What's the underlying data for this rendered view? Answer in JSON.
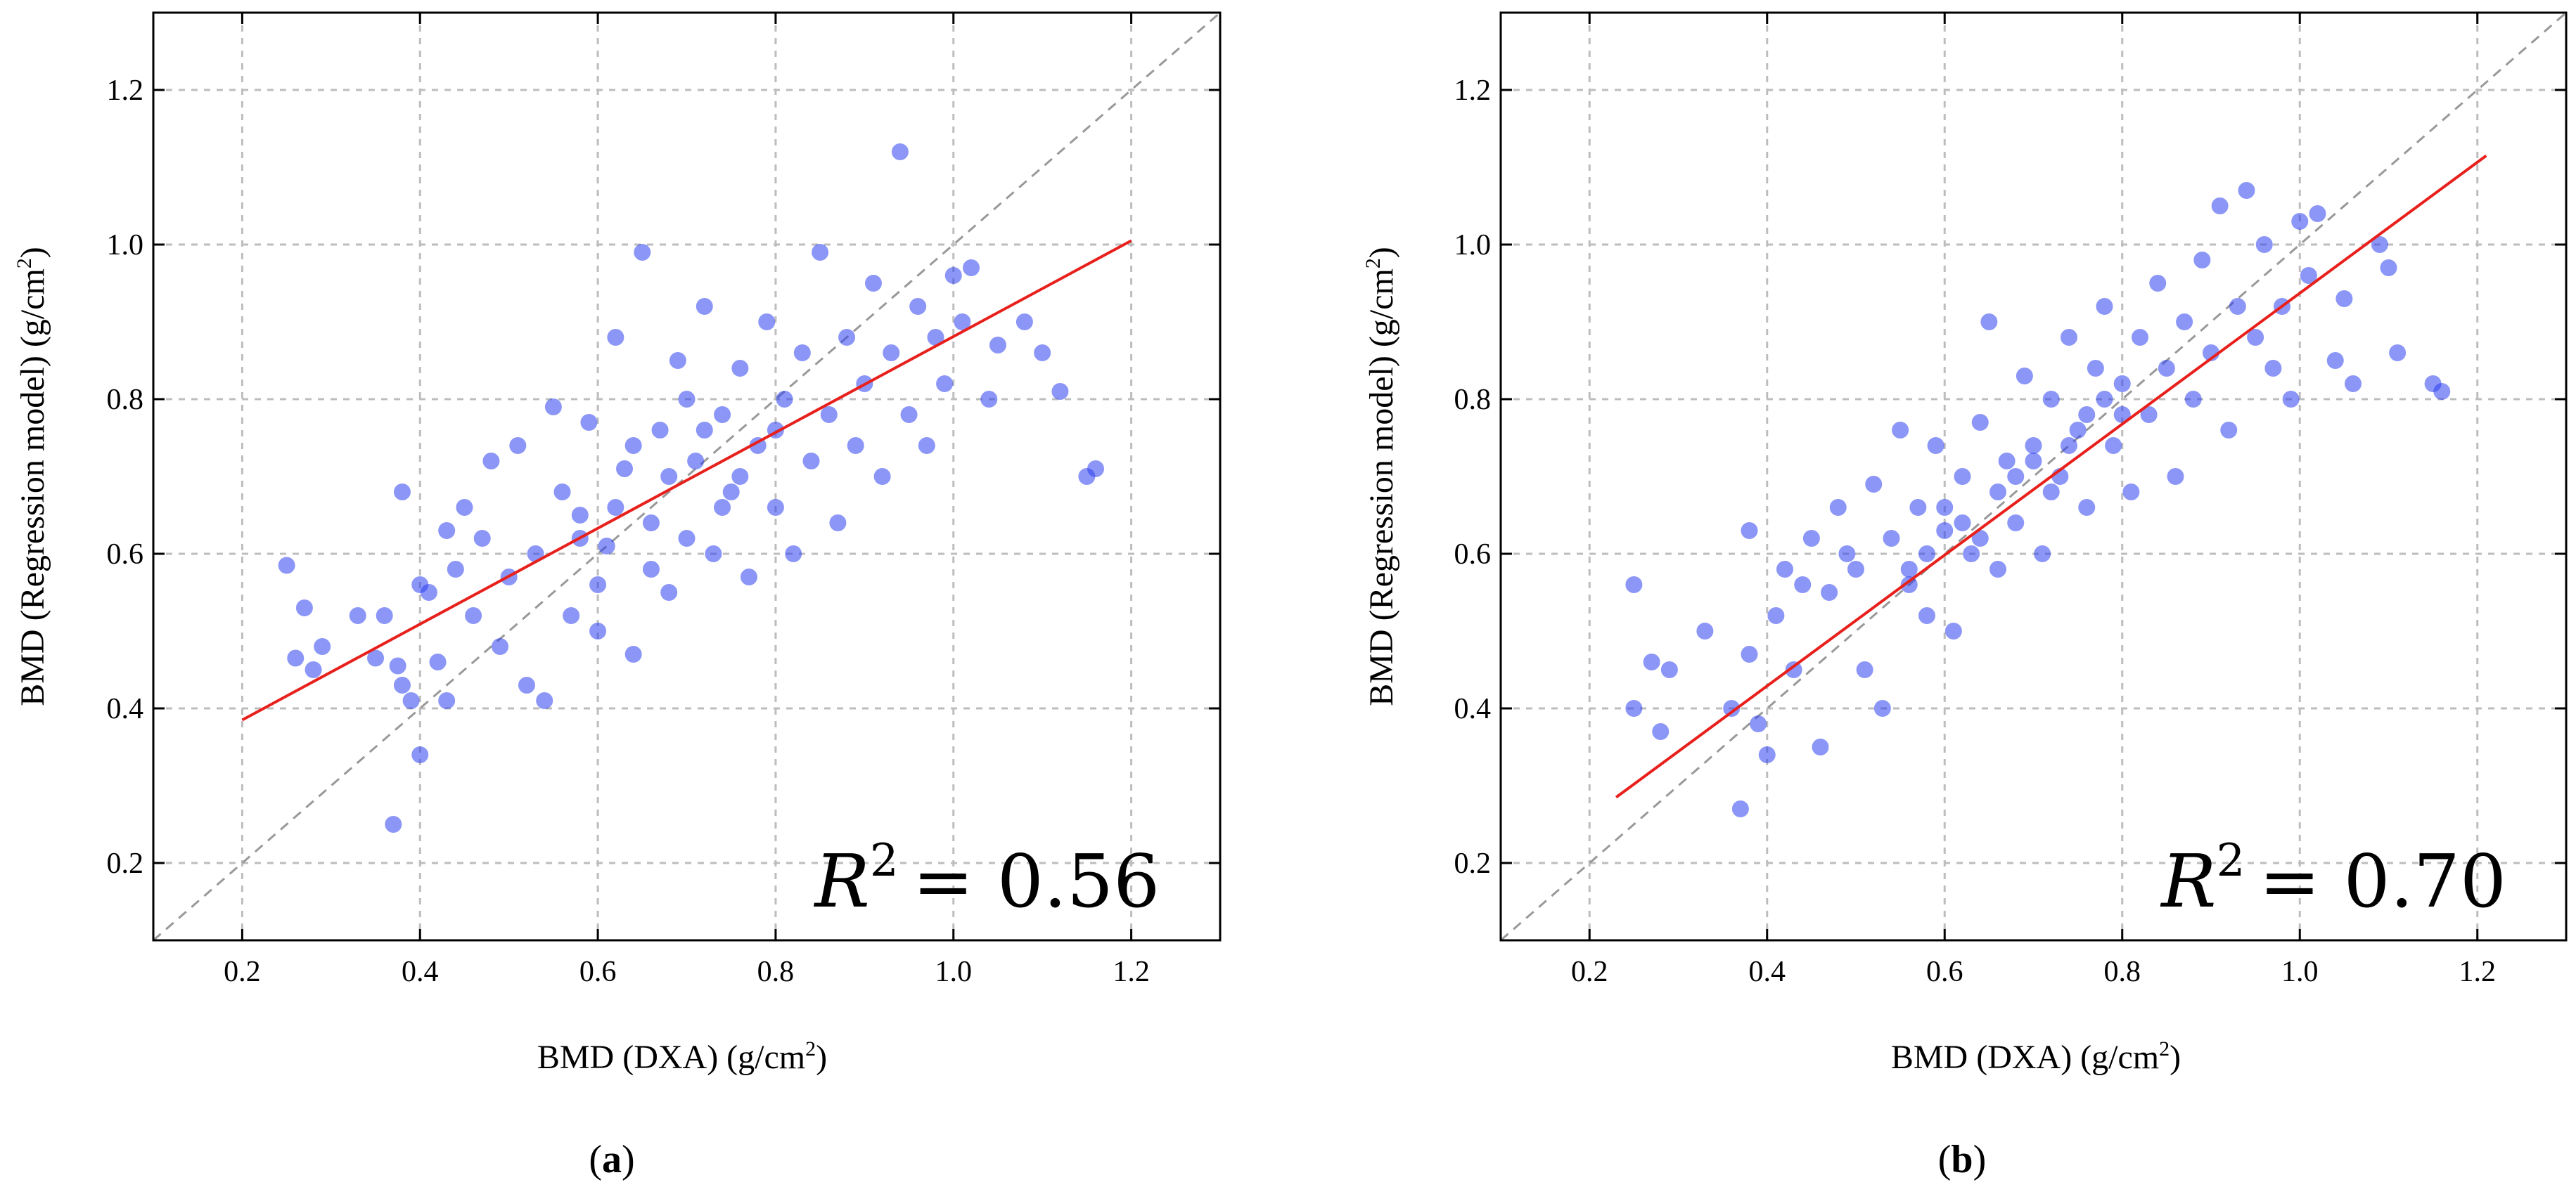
{
  "chart_data": [
    {
      "type": "scatter",
      "panel_label": "a",
      "xlabel": "BMD (DXA) (g/cm",
      "ylabel": "BMD (Regression model) (g/cm",
      "unit_superscript": "2",
      "xlim": [
        0.1,
        1.3
      ],
      "ylim": [
        0.1,
        1.3
      ],
      "xticks": [
        "0.2",
        "0.4",
        "0.6",
        "0.8",
        "1.0",
        "1.2"
      ],
      "yticks": [
        "0.2",
        "0.4",
        "0.6",
        "0.8",
        "1.0",
        "1.2"
      ],
      "grid": true,
      "r2_label": "R",
      "r2_superscript": "2",
      "r2_value": "= 0.56",
      "identity_line": {
        "x": [
          0.1,
          1.3
        ],
        "y": [
          0.1,
          1.3
        ],
        "style": "dashed",
        "color": "#999999"
      },
      "fit_line": {
        "x": [
          0.2,
          1.2
        ],
        "y": [
          0.385,
          1.005
        ],
        "color": "#e8201c"
      },
      "point_color": "#2b3ff0",
      "points": [
        [
          0.25,
          0.585
        ],
        [
          0.26,
          0.465
        ],
        [
          0.27,
          0.53
        ],
        [
          0.28,
          0.45
        ],
        [
          0.29,
          0.48
        ],
        [
          0.33,
          0.52
        ],
        [
          0.35,
          0.465
        ],
        [
          0.36,
          0.52
        ],
        [
          0.37,
          0.25
        ],
        [
          0.375,
          0.455
        ],
        [
          0.38,
          0.68
        ],
        [
          0.38,
          0.43
        ],
        [
          0.39,
          0.41
        ],
        [
          0.4,
          0.34
        ],
        [
          0.4,
          0.56
        ],
        [
          0.41,
          0.55
        ],
        [
          0.42,
          0.46
        ],
        [
          0.43,
          0.63
        ],
        [
          0.43,
          0.41
        ],
        [
          0.44,
          0.58
        ],
        [
          0.45,
          0.66
        ],
        [
          0.46,
          0.52
        ],
        [
          0.47,
          0.62
        ],
        [
          0.48,
          0.72
        ],
        [
          0.49,
          0.48
        ],
        [
          0.5,
          0.57
        ],
        [
          0.51,
          0.74
        ],
        [
          0.52,
          0.43
        ],
        [
          0.53,
          0.6
        ],
        [
          0.54,
          0.41
        ],
        [
          0.55,
          0.79
        ],
        [
          0.56,
          0.68
        ],
        [
          0.57,
          0.52
        ],
        [
          0.58,
          0.65
        ],
        [
          0.59,
          0.77
        ],
        [
          0.6,
          0.5
        ],
        [
          0.61,
          0.61
        ],
        [
          0.62,
          0.88
        ],
        [
          0.63,
          0.71
        ],
        [
          0.64,
          0.47
        ],
        [
          0.65,
          0.99
        ],
        [
          0.66,
          0.64
        ],
        [
          0.67,
          0.76
        ],
        [
          0.68,
          0.55
        ],
        [
          0.69,
          0.85
        ],
        [
          0.7,
          0.62
        ],
        [
          0.71,
          0.72
        ],
        [
          0.72,
          0.92
        ],
        [
          0.73,
          0.6
        ],
        [
          0.74,
          0.78
        ],
        [
          0.75,
          0.68
        ],
        [
          0.76,
          0.84
        ],
        [
          0.77,
          0.57
        ],
        [
          0.78,
          0.74
        ],
        [
          0.79,
          0.9
        ],
        [
          0.8,
          0.66
        ],
        [
          0.81,
          0.8
        ],
        [
          0.82,
          0.6
        ],
        [
          0.83,
          0.86
        ],
        [
          0.84,
          0.72
        ],
        [
          0.85,
          0.99
        ],
        [
          0.86,
          0.78
        ],
        [
          0.87,
          0.64
        ],
        [
          0.88,
          0.88
        ],
        [
          0.89,
          0.74
        ],
        [
          0.9,
          0.82
        ],
        [
          0.91,
          0.95
        ],
        [
          0.92,
          0.7
        ],
        [
          0.93,
          0.86
        ],
        [
          0.94,
          1.12
        ],
        [
          0.95,
          0.78
        ],
        [
          0.96,
          0.92
        ],
        [
          0.97,
          0.74
        ],
        [
          0.98,
          0.88
        ],
        [
          0.99,
          0.82
        ],
        [
          1.0,
          0.96
        ],
        [
          1.01,
          0.9
        ],
        [
          1.02,
          0.97
        ],
        [
          1.04,
          0.8
        ],
        [
          1.05,
          0.87
        ],
        [
          1.08,
          0.9
        ],
        [
          1.1,
          0.86
        ],
        [
          1.12,
          0.81
        ],
        [
          1.15,
          0.7
        ],
        [
          1.16,
          0.71
        ],
        [
          0.62,
          0.66
        ],
        [
          0.68,
          0.7
        ],
        [
          0.72,
          0.76
        ],
        [
          0.64,
          0.74
        ],
        [
          0.58,
          0.62
        ],
        [
          0.7,
          0.8
        ],
        [
          0.76,
          0.7
        ],
        [
          0.66,
          0.58
        ],
        [
          0.74,
          0.66
        ],
        [
          0.8,
          0.76
        ],
        [
          0.6,
          0.56
        ]
      ]
    },
    {
      "type": "scatter",
      "panel_label": "b",
      "xlabel": "BMD (DXA) (g/cm",
      "ylabel": "BMD (Regression model) (g/cm",
      "unit_superscript": "2",
      "xlim": [
        0.1,
        1.3
      ],
      "ylim": [
        0.1,
        1.3
      ],
      "xticks": [
        "0.2",
        "0.4",
        "0.6",
        "0.8",
        "1.0",
        "1.2"
      ],
      "yticks": [
        "0.2",
        "0.4",
        "0.6",
        "0.8",
        "1.0",
        "1.2"
      ],
      "grid": true,
      "r2_label": "R",
      "r2_superscript": "2",
      "r2_value": "= 0.70",
      "identity_line": {
        "x": [
          0.1,
          1.3
        ],
        "y": [
          0.1,
          1.3
        ],
        "style": "dashed",
        "color": "#999999"
      },
      "fit_line": {
        "x": [
          0.23,
          1.21
        ],
        "y": [
          0.285,
          1.115
        ],
        "color": "#e8201c"
      },
      "point_color": "#2b3ff0",
      "points": [
        [
          0.25,
          0.56
        ],
        [
          0.25,
          0.4
        ],
        [
          0.27,
          0.46
        ],
        [
          0.28,
          0.37
        ],
        [
          0.29,
          0.45
        ],
        [
          0.33,
          0.5
        ],
        [
          0.36,
          0.4
        ],
        [
          0.37,
          0.27
        ],
        [
          0.38,
          0.63
        ],
        [
          0.38,
          0.47
        ],
        [
          0.39,
          0.38
        ],
        [
          0.4,
          0.34
        ],
        [
          0.41,
          0.52
        ],
        [
          0.42,
          0.58
        ],
        [
          0.43,
          0.45
        ],
        [
          0.44,
          0.56
        ],
        [
          0.45,
          0.62
        ],
        [
          0.46,
          0.35
        ],
        [
          0.47,
          0.55
        ],
        [
          0.48,
          0.66
        ],
        [
          0.49,
          0.6
        ],
        [
          0.5,
          0.58
        ],
        [
          0.51,
          0.45
        ],
        [
          0.52,
          0.69
        ],
        [
          0.53,
          0.4
        ],
        [
          0.54,
          0.62
        ],
        [
          0.55,
          0.76
        ],
        [
          0.56,
          0.56
        ],
        [
          0.57,
          0.66
        ],
        [
          0.58,
          0.52
        ],
        [
          0.59,
          0.74
        ],
        [
          0.6,
          0.63
        ],
        [
          0.61,
          0.5
        ],
        [
          0.62,
          0.7
        ],
        [
          0.63,
          0.6
        ],
        [
          0.64,
          0.77
        ],
        [
          0.65,
          0.9
        ],
        [
          0.66,
          0.58
        ],
        [
          0.67,
          0.72
        ],
        [
          0.68,
          0.64
        ],
        [
          0.69,
          0.83
        ],
        [
          0.7,
          0.74
        ],
        [
          0.71,
          0.6
        ],
        [
          0.72,
          0.8
        ],
        [
          0.73,
          0.7
        ],
        [
          0.74,
          0.88
        ],
        [
          0.75,
          0.76
        ],
        [
          0.76,
          0.66
        ],
        [
          0.77,
          0.84
        ],
        [
          0.78,
          0.92
        ],
        [
          0.79,
          0.74
        ],
        [
          0.8,
          0.82
        ],
        [
          0.81,
          0.68
        ],
        [
          0.82,
          0.88
        ],
        [
          0.83,
          0.78
        ],
        [
          0.84,
          0.95
        ],
        [
          0.85,
          0.84
        ],
        [
          0.86,
          0.7
        ],
        [
          0.87,
          0.9
        ],
        [
          0.88,
          0.8
        ],
        [
          0.89,
          0.98
        ],
        [
          0.9,
          0.86
        ],
        [
          0.91,
          1.05
        ],
        [
          0.92,
          0.76
        ],
        [
          0.93,
          0.92
        ],
        [
          0.94,
          1.07
        ],
        [
          0.95,
          0.88
        ],
        [
          0.96,
          1.0
        ],
        [
          0.97,
          0.84
        ],
        [
          0.98,
          0.92
        ],
        [
          0.99,
          0.8
        ],
        [
          1.0,
          1.03
        ],
        [
          1.01,
          0.96
        ],
        [
          1.02,
          1.04
        ],
        [
          1.04,
          0.85
        ],
        [
          1.05,
          0.93
        ],
        [
          1.06,
          0.82
        ],
        [
          1.09,
          1.0
        ],
        [
          1.1,
          0.97
        ],
        [
          1.11,
          0.86
        ],
        [
          1.15,
          0.82
        ],
        [
          1.16,
          0.81
        ],
        [
          0.62,
          0.64
        ],
        [
          0.66,
          0.68
        ],
        [
          0.7,
          0.72
        ],
        [
          0.74,
          0.74
        ],
        [
          0.58,
          0.6
        ],
        [
          0.68,
          0.7
        ],
        [
          0.72,
          0.68
        ],
        [
          0.78,
          0.8
        ],
        [
          0.64,
          0.62
        ],
        [
          0.56,
          0.58
        ],
        [
          0.8,
          0.78
        ],
        [
          0.6,
          0.66
        ],
        [
          0.76,
          0.78
        ]
      ]
    }
  ]
}
